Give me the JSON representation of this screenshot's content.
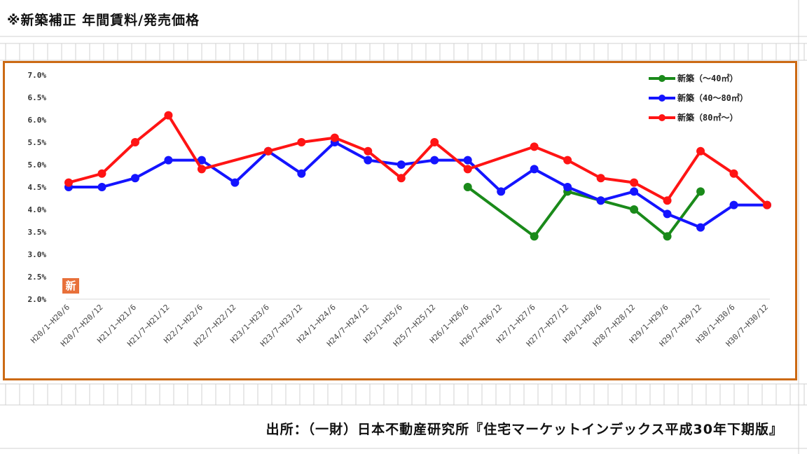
{
  "header": {
    "title": "※新築補正 年間賃料/発売価格"
  },
  "footer": {
    "source": "出所：（一財）日本不動産研究所『住宅マーケットインデックス平成30年下期版』"
  },
  "badge": {
    "text": "新"
  },
  "colors": {
    "frame": "#cc6a14",
    "badge": "#e8703a"
  },
  "chart_data": {
    "type": "line",
    "categories": [
      "H20/1~H20/6",
      "H20/7~H20/12",
      "H21/1~H21/6",
      "H21/7~H21/12",
      "H22/1~H22/6",
      "H22/7~H22/12",
      "H23/1~H23/6",
      "H23/7~H23/12",
      "H24/1~H24/6",
      "H24/7~H24/12",
      "H25/1~H25/6",
      "H25/7~H25/12",
      "H26/1~H26/6",
      "H26/7~H26/12",
      "H27/1~H27/6",
      "H27/7~H27/12",
      "H28/1~H28/6",
      "H28/7~H28/12",
      "H29/1~H29/6",
      "H29/7~H29/12",
      "H30/1~H30/6",
      "H30/7~H30/12"
    ],
    "ylim": [
      2.0,
      7.0
    ],
    "yticks": [
      "2.0%",
      "2.5%",
      "3.0%",
      "3.5%",
      "4.0%",
      "4.5%",
      "5.0%",
      "5.5%",
      "6.0%",
      "6.5%",
      "7.0%"
    ],
    "legend_position": "top-right",
    "series": [
      {
        "name": "新築（～40㎡）",
        "color": "#1a8a1a",
        "values": [
          null,
          null,
          null,
          null,
          null,
          null,
          null,
          null,
          null,
          null,
          null,
          null,
          4.5,
          null,
          3.4,
          4.4,
          4.2,
          4.0,
          3.4,
          4.4,
          null,
          null
        ]
      },
      {
        "name": "新築（40～80㎡）",
        "color": "#1414ff",
        "values": [
          4.5,
          4.5,
          4.7,
          5.1,
          5.1,
          4.6,
          5.3,
          4.8,
          5.5,
          5.1,
          5.0,
          5.1,
          5.1,
          4.4,
          4.9,
          4.5,
          4.2,
          4.4,
          3.9,
          3.6,
          4.1,
          4.1
        ]
      },
      {
        "name": "新築（80㎡～）",
        "color": "#ff1414",
        "values": [
          4.6,
          4.8,
          5.5,
          6.1,
          4.9,
          null,
          5.3,
          5.5,
          5.6,
          5.3,
          4.7,
          5.5,
          4.9,
          null,
          5.4,
          5.1,
          4.7,
          4.6,
          4.2,
          5.3,
          4.8,
          4.1
        ]
      }
    ]
  }
}
